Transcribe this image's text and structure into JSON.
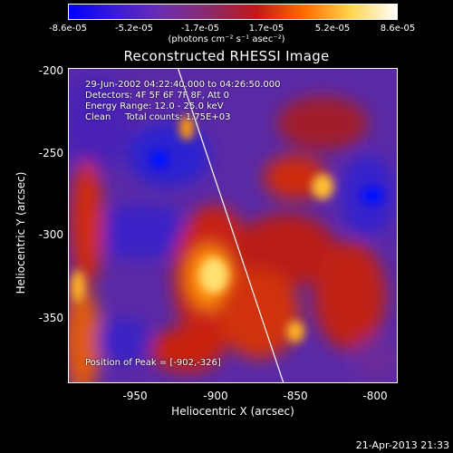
{
  "colorbar": {
    "ticks": [
      "-8.6e-05",
      "-5.2e-05",
      "-1.7e-05",
      "1.7e-05",
      "5.2e-05",
      "8.6e-05"
    ],
    "units": "(photons cm⁻² s⁻¹ asec⁻²)",
    "colors": [
      "#0000ff",
      "#3b1cd6",
      "#6d2fb0",
      "#8a2a6b",
      "#c01818",
      "#ff6a00",
      "#ffd34a",
      "#ffffff"
    ]
  },
  "title": "Reconstructed RHESSI Image",
  "info": {
    "time": "29-Jun-2002 04:22:40.000 to 04:26:50.000",
    "detectors": "Detectors: 4F 5F 6F 7F 8F, Att 0",
    "energy": "Energy Range: 12.0 - 25.0 keV",
    "clean": "Clean     Total counts: 1.75E+03"
  },
  "peak_label": "Position of Peak = [-902,-326]",
  "x_axis": {
    "label": "Heliocentric X (arcsec)",
    "ticks": [
      "-950",
      "-900",
      "-850",
      "-800"
    ]
  },
  "y_axis": {
    "label": "Heliocentric Y (arcsec)",
    "ticks": [
      "-200",
      "-250",
      "-300",
      "-350"
    ]
  },
  "timestamp": "21-Apr-2013 21:33"
}
